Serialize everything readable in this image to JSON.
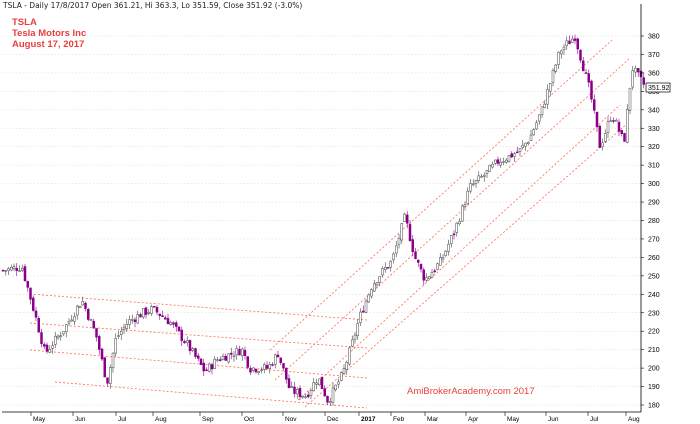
{
  "header": {
    "info_line": "TSLA - Daily 17/8/2017 Open 361.21, Hi 363.3, Lo 351.59, Close 351.92 (-3.0%)",
    "symbol": "TSLA",
    "company": "Tesla Motors Inc",
    "date": "August 17, 2017"
  },
  "watermark": "AmiBrokerAcademy.com  2017",
  "last_price_label": "351.92",
  "colors": {
    "up_candle": "#9e9e9e",
    "down_candle": "#8b008b",
    "trendline": "#ff6a55",
    "grid": "#d6d6d6",
    "label_red": "#e8403c"
  },
  "chart_data": {
    "type": "candlestick",
    "title": "TSLA - Daily 17/8/2017",
    "ylim": [
      172,
      392
    ],
    "y_ticks": [
      180,
      190,
      200,
      210,
      220,
      230,
      240,
      250,
      260,
      270,
      280,
      290,
      300,
      310,
      320,
      330,
      340,
      350,
      360,
      370,
      380
    ],
    "x_tick_labels": [
      "May",
      "Jun",
      "Jul",
      "Aug",
      "Sep",
      "Oct",
      "Nov",
      "Dec",
      "2017",
      "Feb",
      "Mar",
      "Apr",
      "May",
      "Jun",
      "Jul",
      "Aug"
    ],
    "last_close": 351.92,
    "price_path": [
      {
        "x": "Apr 2016",
        "close": 253
      },
      {
        "x": "late Apr",
        "close": 255
      },
      {
        "x": "early May",
        "close": 225
      },
      {
        "x": "mid May",
        "close": 208
      },
      {
        "x": "late May",
        "close": 222
      },
      {
        "x": "early Jun",
        "close": 237
      },
      {
        "x": "mid Jun",
        "close": 218
      },
      {
        "x": "late Jun",
        "close": 192
      },
      {
        "x": "early Jul",
        "close": 216
      },
      {
        "x": "mid Jul",
        "close": 225
      },
      {
        "x": "late Jul",
        "close": 230
      },
      {
        "x": "early Aug",
        "close": 232
      },
      {
        "x": "mid Aug",
        "close": 225
      },
      {
        "x": "late Aug",
        "close": 213
      },
      {
        "x": "early Sep",
        "close": 198
      },
      {
        "x": "mid Sep",
        "close": 205
      },
      {
        "x": "late Sep",
        "close": 210
      },
      {
        "x": "early Oct",
        "close": 200
      },
      {
        "x": "mid Oct",
        "close": 200
      },
      {
        "x": "late Oct",
        "close": 208
      },
      {
        "x": "early Nov",
        "close": 188
      },
      {
        "x": "mid Nov",
        "close": 185
      },
      {
        "x": "late Nov",
        "close": 195
      },
      {
        "x": "early Dec",
        "close": 182
      },
      {
        "x": "mid Dec",
        "close": 197
      },
      {
        "x": "late Dec",
        "close": 215
      },
      {
        "x": "early Jan 2017",
        "close": 228
      },
      {
        "x": "mid Jan",
        "close": 245
      },
      {
        "x": "late Jan",
        "close": 252
      },
      {
        "x": "early Feb",
        "close": 258
      },
      {
        "x": "mid Feb",
        "close": 282
      },
      {
        "x": "late Feb",
        "close": 260
      },
      {
        "x": "early Mar",
        "close": 248
      },
      {
        "x": "mid Mar",
        "close": 258
      },
      {
        "x": "late Mar",
        "close": 275
      },
      {
        "x": "early Apr",
        "close": 298
      },
      {
        "x": "mid Apr",
        "close": 305
      },
      {
        "x": "late Apr",
        "close": 312
      },
      {
        "x": "early May",
        "close": 315
      },
      {
        "x": "mid May",
        "close": 318
      },
      {
        "x": "late May",
        "close": 325
      },
      {
        "x": "early Jun",
        "close": 340
      },
      {
        "x": "mid Jun",
        "close": 372
      },
      {
        "x": "late Jun",
        "close": 380
      },
      {
        "x": "early Jul",
        "close": 350
      },
      {
        "x": "mid Jul",
        "close": 320
      },
      {
        "x": "late Jul",
        "close": 338
      },
      {
        "x": "early Aug",
        "close": 322
      },
      {
        "x": "mid Aug",
        "close": 363
      },
      {
        "x": "Aug 17",
        "close": 351.92
      }
    ],
    "trendlines": "three downward-sloping parallel channel lines May–Dec 2016 and three upward-sloping parallel channel lines Nov 2016–Jul 2017 (dotted red)"
  }
}
